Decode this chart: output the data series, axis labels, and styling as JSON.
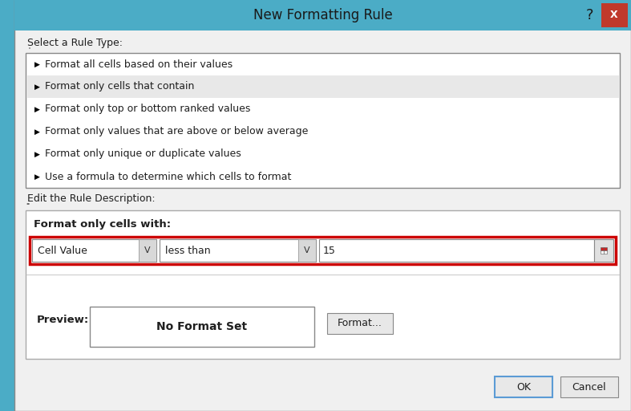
{
  "title": "New Formatting Rule",
  "teal_color": "#4BACC6",
  "dialog_bg": "#F0F0F0",
  "white": "#FFFFFF",
  "rule_types": [
    "Format all cells based on their values",
    "Format only cells that contain",
    "Format only top or bottom ranked values",
    "Format only values that are above or below average",
    "Format only unique or duplicate values",
    "Use a formula to determine which cells to format"
  ],
  "highlighted_rule_index": 1,
  "highlight_color": "#E8E8E8",
  "section1_label": "Select a Rule Type:",
  "section2_label": "Edit the Rule Description:",
  "format_cells_label": "Format only cells with:",
  "dropdown1": "Cell Value",
  "dropdown2": "less than",
  "value_field": "15",
  "red_border_color": "#CC0000",
  "preview_label": "Preview:",
  "preview_text": "No Format Set",
  "button_format": "Format...",
  "button_ok": "OK",
  "button_cancel": "Cancel",
  "close_btn_color": "#C0392B",
  "border_dark": "#888888",
  "border_light": "#BBBBBB",
  "text_dark": "#1F1F1F",
  "text_blue": "#1F3864",
  "ok_border": "#5B9BD5",
  "panel_border": "#AAAAAA"
}
